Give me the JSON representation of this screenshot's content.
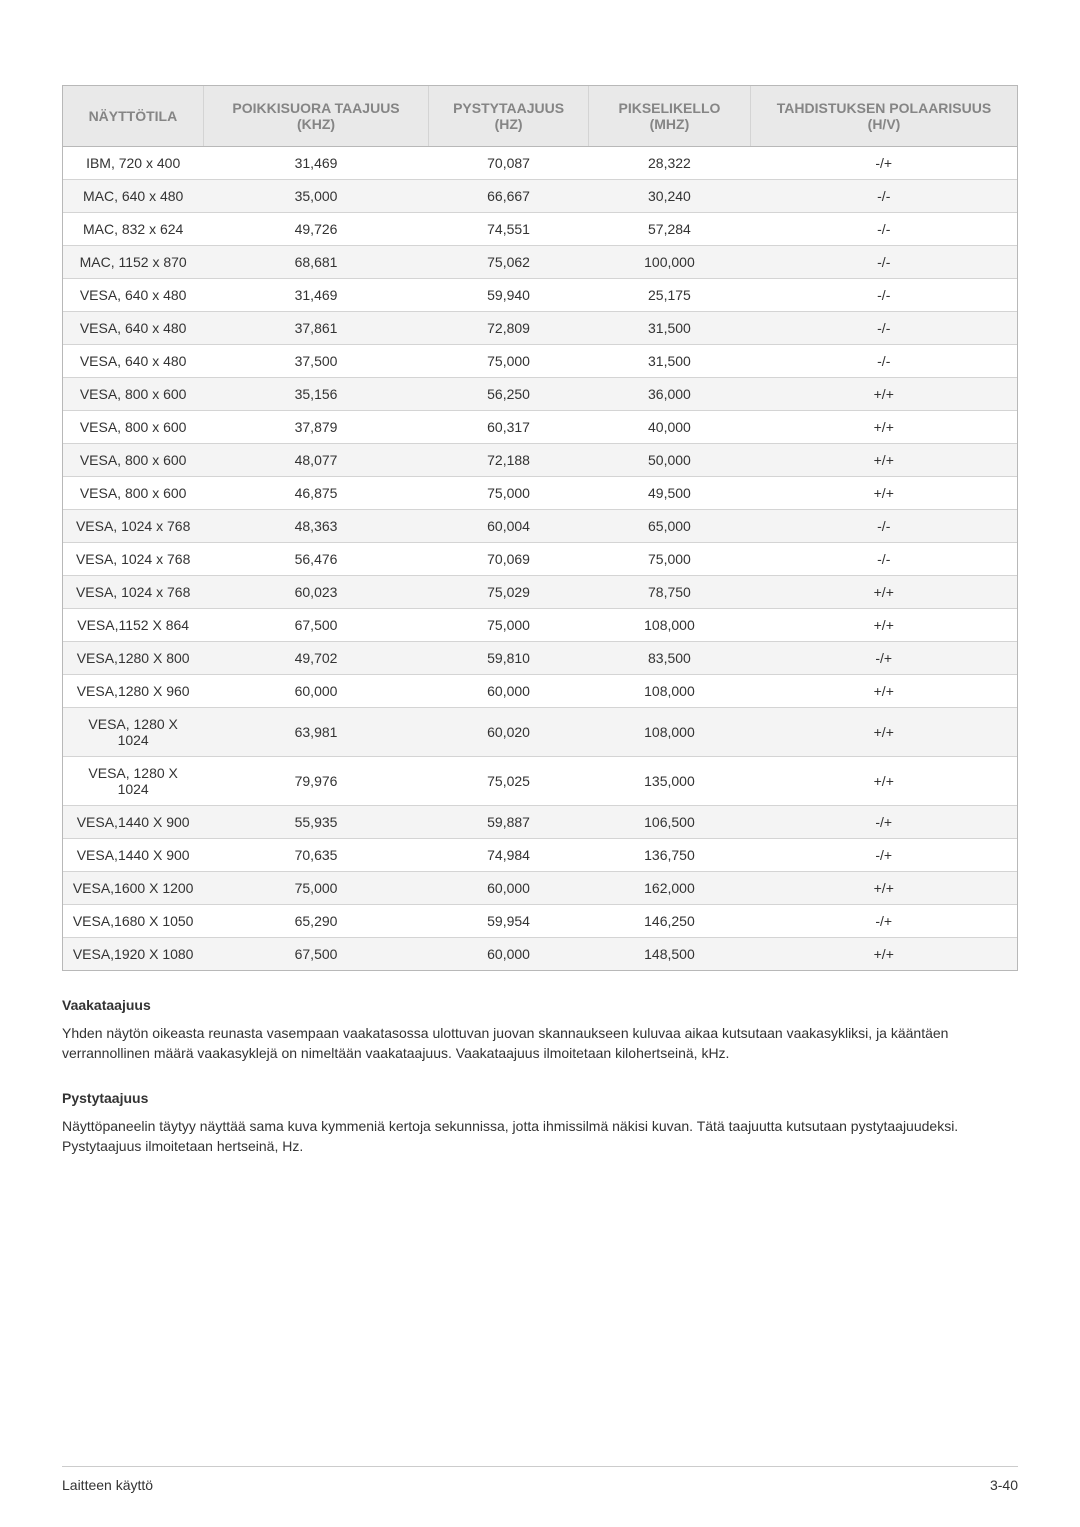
{
  "table": {
    "header_bg": "#e9e9e9",
    "header_text_color": "#858585",
    "border_color": "#b8b8b8",
    "row_border_color": "#d4d4d4",
    "alt_row_bg": "#f4f4f4",
    "columns": [
      "NÄYTTÖTILA",
      "POIKKISUORA TAAJUUS (KHZ)",
      "PYSTYTAAJUUS (HZ)",
      "PIKSELIKELLO (MHZ)",
      "TAHDISTUKSEN POLAARISUUS (H/V)"
    ],
    "rows": [
      [
        "IBM, 720 x 400",
        "31,469",
        "70,087",
        "28,322",
        "-/+"
      ],
      [
        "MAC, 640 x 480",
        "35,000",
        "66,667",
        "30,240",
        "-/-"
      ],
      [
        "MAC, 832 x 624",
        "49,726",
        "74,551",
        "57,284",
        "-/-"
      ],
      [
        "MAC, 1152 x 870",
        "68,681",
        "75,062",
        "100,000",
        "-/-"
      ],
      [
        "VESA, 640 x 480",
        "31,469",
        "59,940",
        "25,175",
        "-/-"
      ],
      [
        "VESA, 640 x 480",
        "37,861",
        "72,809",
        "31,500",
        "-/-"
      ],
      [
        "VESA, 640 x 480",
        "37,500",
        "75,000",
        "31,500",
        "-/-"
      ],
      [
        "VESA, 800 x 600",
        "35,156",
        "56,250",
        "36,000",
        "+/+"
      ],
      [
        "VESA, 800 x 600",
        "37,879",
        "60,317",
        "40,000",
        "+/+"
      ],
      [
        "VESA, 800 x 600",
        "48,077",
        "72,188",
        "50,000",
        "+/+"
      ],
      [
        "VESA, 800 x 600",
        "46,875",
        "75,000",
        "49,500",
        "+/+"
      ],
      [
        "VESA, 1024 x 768",
        "48,363",
        "60,004",
        "65,000",
        "-/-"
      ],
      [
        "VESA, 1024 x 768",
        "56,476",
        "70,069",
        "75,000",
        "-/-"
      ],
      [
        "VESA, 1024 x 768",
        "60,023",
        "75,029",
        "78,750",
        "+/+"
      ],
      [
        "VESA,1152 X 864",
        "67,500",
        "75,000",
        "108,000",
        "+/+"
      ],
      [
        "VESA,1280 X 800",
        "49,702",
        "59,810",
        "83,500",
        "-/+"
      ],
      [
        "VESA,1280 X 960",
        "60,000",
        "60,000",
        "108,000",
        "+/+"
      ],
      [
        "VESA, 1280 X 1024",
        "63,981",
        "60,020",
        "108,000",
        "+/+"
      ],
      [
        "VESA, 1280 X 1024",
        "79,976",
        "75,025",
        "135,000",
        "+/+"
      ],
      [
        "VESA,1440 X 900",
        "55,935",
        "59,887",
        "106,500",
        "-/+"
      ],
      [
        "VESA,1440 X 900",
        "70,635",
        "74,984",
        "136,750",
        "-/+"
      ],
      [
        "VESA,1600 X 1200",
        "75,000",
        "60,000",
        "162,000",
        "+/+"
      ],
      [
        "VESA,1680 X 1050",
        "65,290",
        "59,954",
        "146,250",
        "-/+"
      ],
      [
        "VESA,1920 X 1080",
        "67,500",
        "60,000",
        "148,500",
        "+/+"
      ]
    ]
  },
  "sections": {
    "s1_title": "Vaakataajuus",
    "s1_body": "Yhden näytön oikeasta reunasta vasempaan vaakatasossa ulottuvan juovan skannaukseen kuluvaa aikaa kutsutaan vaakasykliksi, ja kääntäen verrannollinen määrä vaakasyklejä on nimeltään vaakataajuus. Vaakataajuus ilmoitetaan kilohertseinä, kHz.",
    "s2_title": "Pystytaajuus",
    "s2_body": "Näyttöpaneelin täytyy näyttää sama kuva kymmeniä kertoja sekunnissa, jotta ihmissilmä näkisi kuvan. Tätä taajuutta kutsutaan pystytaajuudeksi. Pystytaajuus ilmoitetaan hertseinä, Hz."
  },
  "footer": {
    "left": "Laitteen käyttö",
    "right": "3-40"
  }
}
